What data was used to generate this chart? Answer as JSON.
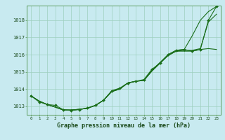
{
  "title": "Graphe pression niveau de la mer (hPa)",
  "bg_color": "#c8eaf0",
  "grid_color": "#9ecfbe",
  "line_color": "#1a6e1a",
  "xlim": [
    -0.5,
    23.5
  ],
  "ylim": [
    1012.5,
    1018.85
  ],
  "yticks": [
    1013,
    1014,
    1015,
    1016,
    1017,
    1018
  ],
  "xtick_labels": [
    "0",
    "1",
    "2",
    "3",
    "4",
    "5",
    "6",
    "7",
    "8",
    "9",
    "10",
    "11",
    "12",
    "13",
    "14",
    "15",
    "16",
    "17",
    "18",
    "19",
    "20",
    "21",
    "22",
    "23"
  ],
  "line1_x": [
    0,
    1,
    2,
    3,
    4,
    5,
    6,
    7,
    8,
    9,
    10,
    11,
    12,
    13,
    14,
    15,
    16,
    17,
    18,
    19,
    20,
    21,
    22,
    23
  ],
  "line1_y": [
    1013.6,
    1013.3,
    1013.1,
    1012.95,
    1012.78,
    1012.78,
    1012.82,
    1012.88,
    1013.05,
    1013.35,
    1013.85,
    1014.0,
    1014.35,
    1014.45,
    1014.5,
    1015.05,
    1015.5,
    1015.95,
    1016.2,
    1016.2,
    1016.2,
    1016.3,
    1016.35,
    1016.3
  ],
  "line2_x": [
    0,
    1,
    2,
    3,
    4,
    5,
    6,
    7,
    8,
    9,
    10,
    11,
    12,
    13,
    14,
    15,
    16,
    17,
    18,
    19,
    20,
    21,
    22,
    23
  ],
  "line2_y": [
    1013.6,
    1013.3,
    1013.1,
    1012.95,
    1012.78,
    1012.78,
    1012.82,
    1012.88,
    1013.05,
    1013.35,
    1013.85,
    1014.0,
    1014.35,
    1014.45,
    1014.5,
    1015.05,
    1015.5,
    1015.95,
    1016.2,
    1016.25,
    1016.25,
    1016.35,
    1017.9,
    1018.35
  ],
  "line3_x": [
    0,
    1,
    2,
    3,
    4,
    5,
    6,
    7,
    8,
    9,
    10,
    11,
    12,
    13,
    14,
    15,
    16,
    17,
    18,
    19,
    20,
    21,
    22,
    23
  ],
  "line3_y": [
    1013.6,
    1013.3,
    1013.1,
    1012.95,
    1012.78,
    1012.78,
    1012.82,
    1012.88,
    1013.05,
    1013.35,
    1013.85,
    1014.0,
    1014.35,
    1014.45,
    1014.5,
    1015.1,
    1015.55,
    1016.0,
    1016.25,
    1016.3,
    1017.1,
    1018.0,
    1018.5,
    1018.8
  ],
  "marker_x": [
    0,
    1,
    2,
    3,
    4,
    5,
    6,
    7,
    8,
    9,
    10,
    11,
    12,
    13,
    14,
    15,
    16,
    17,
    18,
    19,
    20,
    21,
    22,
    23
  ],
  "marker_y": [
    1013.6,
    1013.25,
    1013.1,
    1013.05,
    1012.8,
    1012.75,
    1012.8,
    1012.9,
    1013.05,
    1013.35,
    1013.9,
    1014.05,
    1014.35,
    1014.45,
    1014.55,
    1015.15,
    1015.5,
    1016.0,
    1016.25,
    1016.3,
    1016.2,
    1016.3,
    1018.0,
    1018.8
  ]
}
